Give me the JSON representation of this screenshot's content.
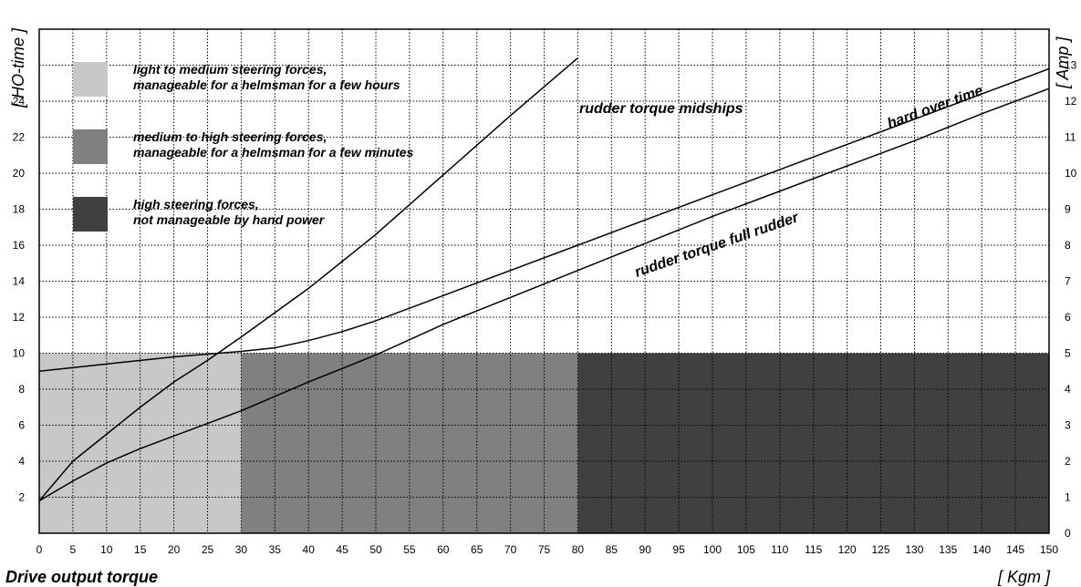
{
  "chart_data": {
    "type": "line",
    "xlabel": "Drive output torque",
    "xunit": "[ Kgm ]",
    "ylabel_left": "[ HO-time ]",
    "ylabel_right": "[ Amp ]",
    "xlim": [
      0,
      150
    ],
    "ylim_left": [
      0,
      28
    ],
    "ylim_right": [
      0,
      14
    ],
    "x_ticks": [
      0,
      5,
      10,
      15,
      20,
      25,
      30,
      35,
      40,
      45,
      50,
      55,
      60,
      65,
      70,
      75,
      80,
      85,
      90,
      95,
      100,
      105,
      110,
      115,
      120,
      125,
      130,
      135,
      140,
      145,
      150
    ],
    "y_left_ticks": [
      2,
      4,
      6,
      8,
      10,
      12,
      14,
      16,
      18,
      20,
      22,
      24
    ],
    "y_right_ticks": [
      0,
      1,
      2,
      3,
      4,
      5,
      6,
      7,
      8,
      9,
      10,
      11,
      12,
      13
    ],
    "grid": true,
    "zones": [
      {
        "name": "light to medium steering forces",
        "x_range": [
          0,
          30
        ],
        "y_top": 10,
        "color": "#c8c8c8"
      },
      {
        "name": "medium to high steering forces",
        "x_range": [
          30,
          80
        ],
        "y_top": 10,
        "color": "#808080"
      },
      {
        "name": "high steering forces",
        "x_range": [
          80,
          150
        ],
        "y_top": 10,
        "color": "#404040"
      }
    ],
    "legend": [
      {
        "color": "#c8c8c8",
        "lines": [
          "light to medium steering forces,",
          "manageable for a helmsman for a few hours"
        ]
      },
      {
        "color": "#808080",
        "lines": [
          "medium to high steering forces,",
          "manageable for a helmsman for a few minutes"
        ]
      },
      {
        "color": "#404040",
        "lines": [
          "high steering forces,",
          "not manageable by hand power"
        ]
      }
    ],
    "series": [
      {
        "name": "rudder torque midships",
        "x": [
          0,
          5,
          10,
          15,
          20,
          25,
          30,
          40,
          50,
          60,
          70,
          80
        ],
        "y": [
          1.8,
          4.0,
          5.5,
          7.0,
          8.4,
          9.6,
          10.9,
          13.6,
          16.6,
          19.9,
          23.2,
          26.4
        ]
      },
      {
        "name": "hard over time",
        "x": [
          0,
          10,
          20,
          30,
          35,
          40,
          45,
          50,
          60,
          70,
          80,
          90,
          100,
          110,
          120,
          130,
          140,
          150
        ],
        "y": [
          9.0,
          9.4,
          9.8,
          10.1,
          10.3,
          10.7,
          11.2,
          11.8,
          13.2,
          14.6,
          16.0,
          17.4,
          18.8,
          20.2,
          21.6,
          23.0,
          24.4,
          25.8
        ]
      },
      {
        "name": "rudder torque full rudder",
        "x": [
          0,
          5,
          10,
          15,
          20,
          25,
          30,
          40,
          50,
          60,
          70,
          80,
          90,
          100,
          110,
          120,
          130,
          140,
          150
        ],
        "y": [
          1.8,
          2.9,
          3.9,
          4.7,
          5.4,
          6.1,
          6.8,
          8.4,
          9.9,
          11.6,
          13.1,
          14.6,
          16.1,
          17.6,
          19.0,
          20.4,
          21.8,
          23.3,
          24.7
        ]
      }
    ],
    "annotations": {
      "midships": "rudder torque midships",
      "hard_over": "hard over time",
      "full_rudder": "rudder torque full rudder"
    }
  }
}
